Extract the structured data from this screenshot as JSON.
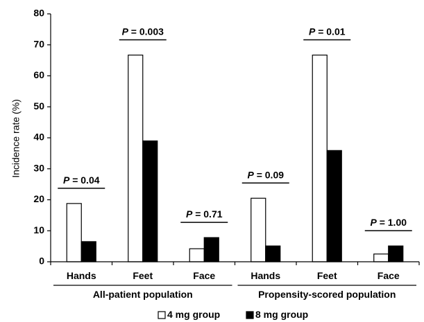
{
  "chart_data": {
    "type": "bar",
    "ylabel": "Incidence rate (%)",
    "ylim": [
      0,
      80
    ],
    "yticks": [
      0,
      10,
      20,
      30,
      40,
      50,
      60,
      70,
      80
    ],
    "grid": false,
    "legend_placement": "bottom-center",
    "categories": [
      "Hands",
      "Feet",
      "Face",
      "Hands",
      "Feet",
      "Face"
    ],
    "groups": [
      {
        "label": "All-patient population",
        "categories": [
          0,
          1,
          2
        ]
      },
      {
        "label": "Propensity-scored population",
        "categories": [
          3,
          4,
          5
        ]
      }
    ],
    "series": [
      {
        "name": "4 mg group",
        "color": "#ffffff",
        "values": [
          18.8,
          66.7,
          4.2,
          20.5,
          66.7,
          2.5
        ]
      },
      {
        "name": "8 mg group",
        "color": "#000000",
        "values": [
          6.5,
          39.0,
          7.8,
          5.1,
          35.9,
          5.1
        ]
      }
    ],
    "p_values": [
      {
        "prefix": "P",
        "text": " = 0.04"
      },
      {
        "prefix": "P",
        "text": " = 0.003"
      },
      {
        "prefix": "P",
        "text": " = 0.71"
      },
      {
        "prefix": "P",
        "text": " = 0.09"
      },
      {
        "prefix": "P",
        "text": " = 0.01"
      },
      {
        "prefix": "P",
        "text": " = 1.00"
      }
    ]
  }
}
